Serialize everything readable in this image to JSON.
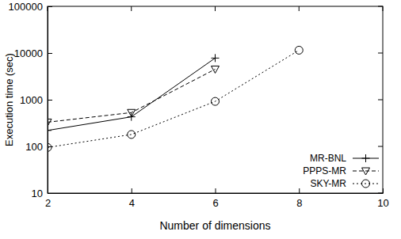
{
  "chart_data": {
    "type": "line",
    "xlabel": "Number of dimensions",
    "ylabel": "Execution time (sec)",
    "x": [
      2,
      4,
      6,
      8
    ],
    "series": [
      {
        "name": "MR-BNL",
        "color": "#000000",
        "marker": "plus",
        "line_style": "solid",
        "values": [
          220,
          430,
          7800,
          null
        ]
      },
      {
        "name": "PPPS-MR",
        "color": "#000000",
        "marker": "triangle-down",
        "line_style": "dashed",
        "values": [
          330,
          530,
          4500,
          null
        ]
      },
      {
        "name": "SKY-MR",
        "color": "#000000",
        "marker": "circle",
        "line_style": "dotted",
        "values": [
          95,
          180,
          920,
          11500
        ]
      }
    ],
    "xlim": [
      2,
      10
    ],
    "xticks": [
      2,
      4,
      6,
      8,
      10
    ],
    "ylim": [
      10,
      100000
    ],
    "yticks": [
      10,
      100,
      1000,
      10000,
      100000
    ],
    "log": "y",
    "grid": false,
    "legend": "lower right"
  }
}
